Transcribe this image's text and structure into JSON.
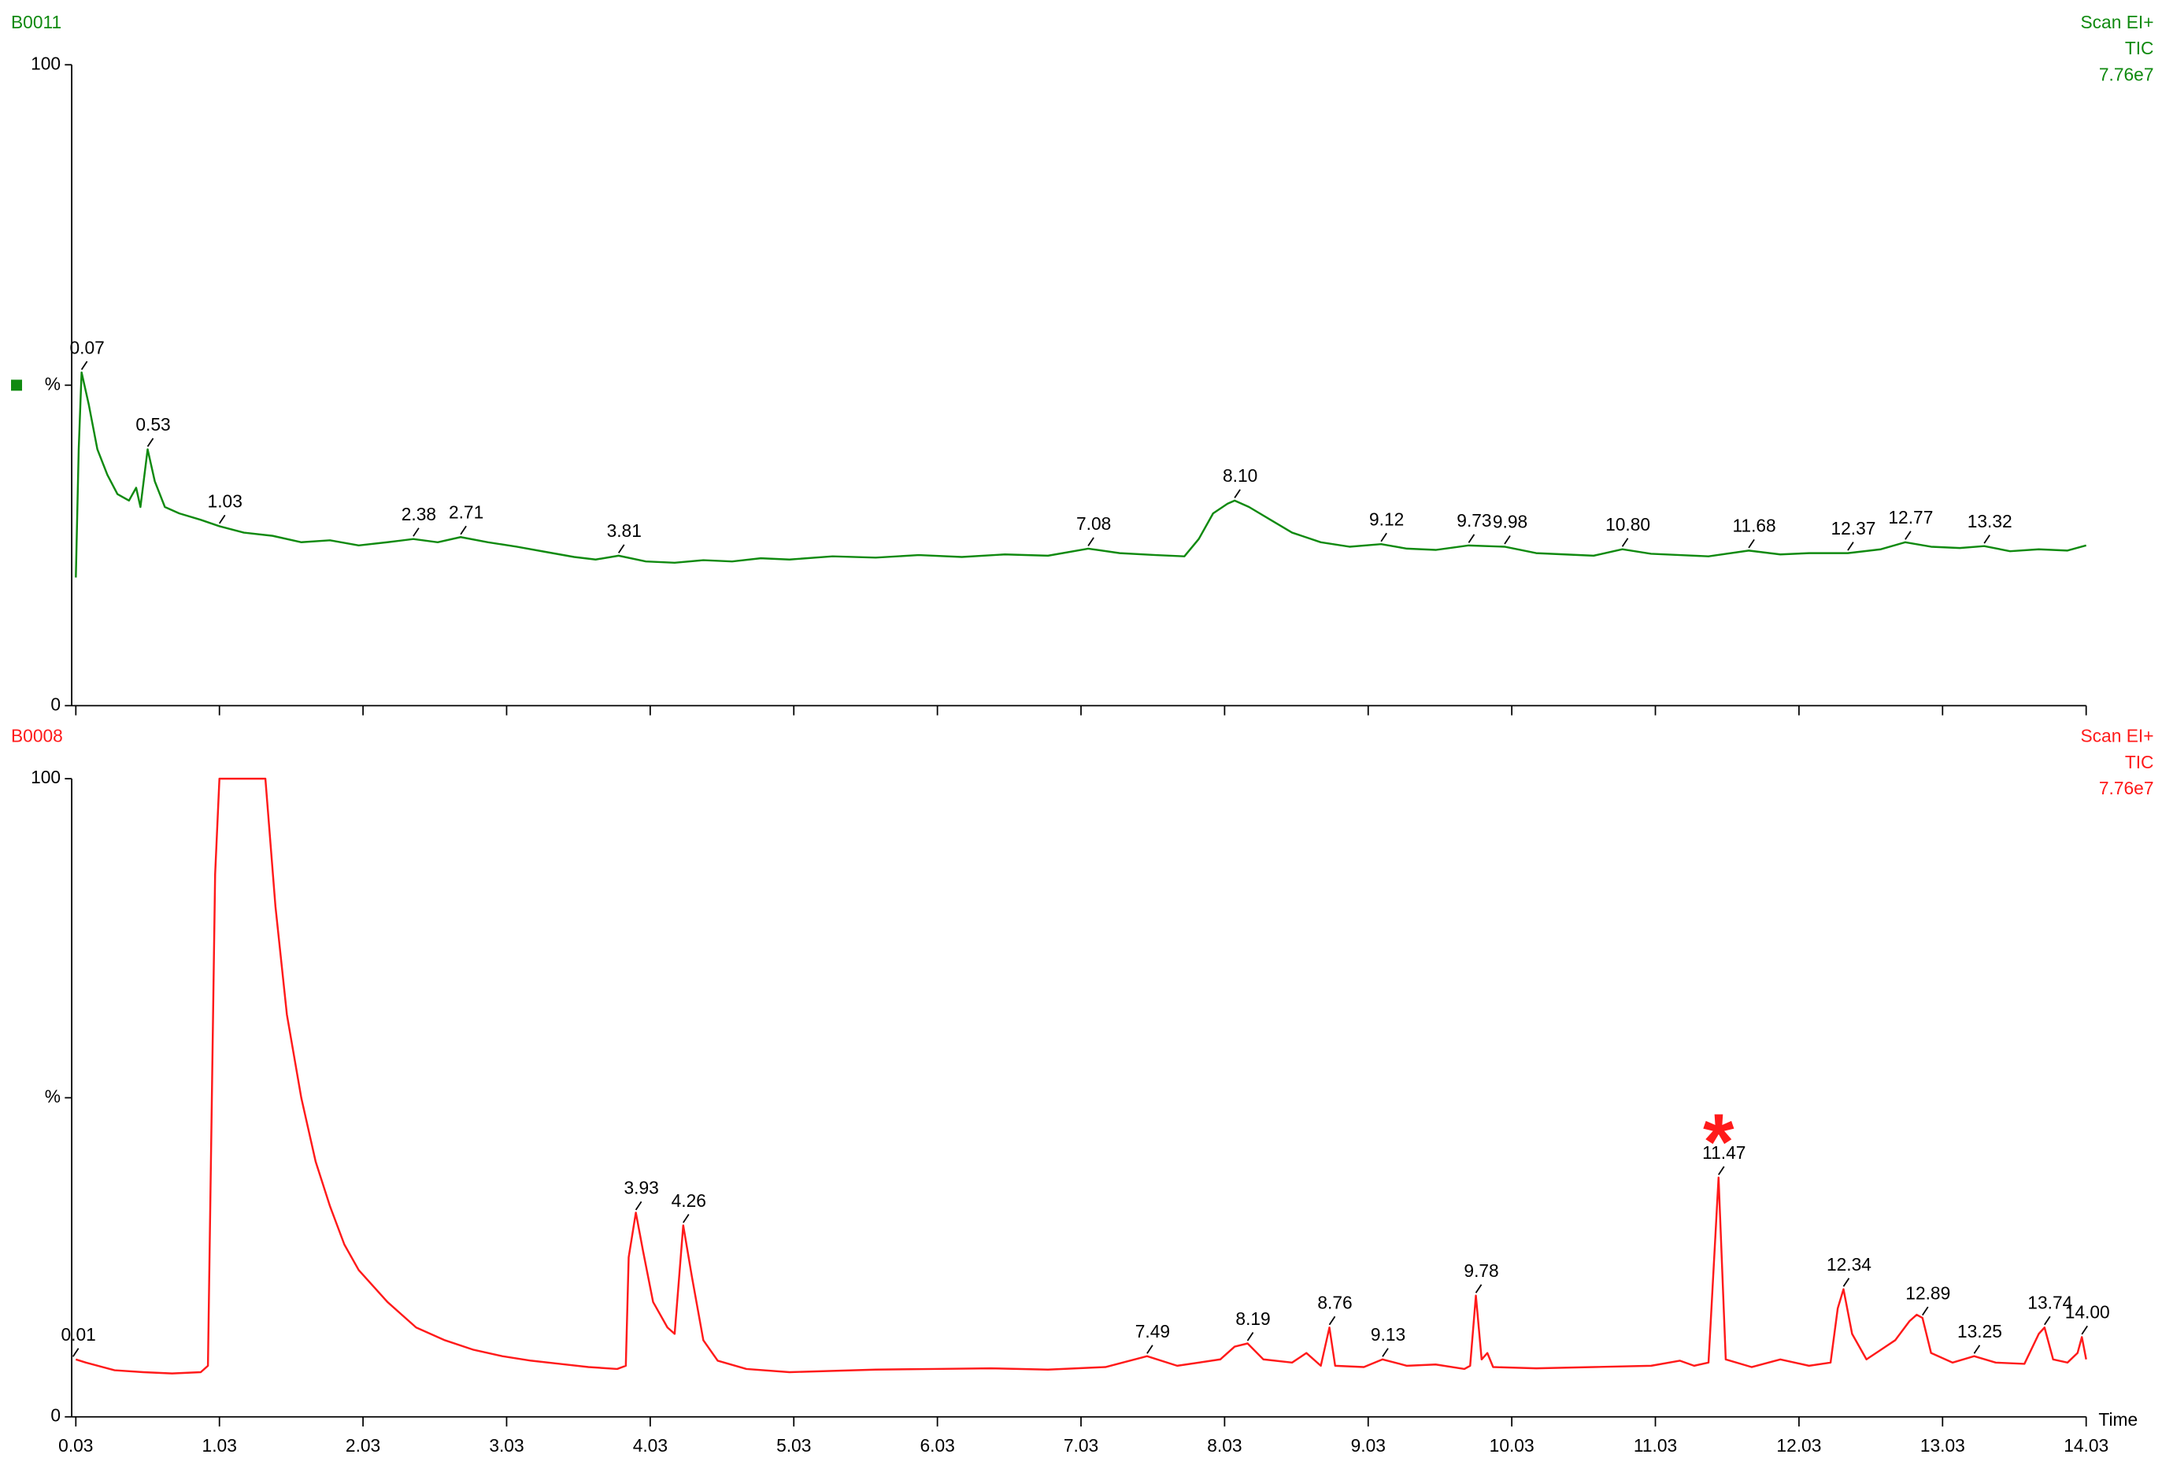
{
  "chart_data": [
    {
      "type": "line",
      "title": "B0011",
      "scan_mode": "Scan EI+",
      "trace": "TIC",
      "intensity": "7.76e7",
      "color": "#108a10",
      "xlim": [
        0.03,
        14.03
      ],
      "xticks": [
        0.03,
        1.03,
        2.03,
        3.03,
        4.03,
        5.03,
        6.03,
        7.03,
        8.03,
        9.03,
        10.03,
        11.03,
        12.03,
        13.03,
        14.03
      ],
      "show_xtick_labels": false,
      "ylim": [
        0,
        100
      ],
      "yticks": [
        0,
        {
          "value": 50,
          "label": "%"
        },
        100
      ],
      "selected_marker": true,
      "x": [
        0.03,
        0.05,
        0.07,
        0.12,
        0.18,
        0.25,
        0.32,
        0.4,
        0.45,
        0.48,
        0.53,
        0.58,
        0.65,
        0.75,
        0.9,
        1.03,
        1.2,
        1.4,
        1.6,
        1.8,
        2.0,
        2.2,
        2.38,
        2.55,
        2.71,
        2.9,
        3.1,
        3.3,
        3.5,
        3.65,
        3.81,
        4.0,
        4.2,
        4.4,
        4.6,
        4.8,
        5.0,
        5.3,
        5.6,
        5.9,
        6.2,
        6.5,
        6.8,
        7.08,
        7.3,
        7.55,
        7.75,
        7.85,
        7.95,
        8.05,
        8.1,
        8.2,
        8.35,
        8.5,
        8.7,
        8.9,
        9.12,
        9.3,
        9.5,
        9.73,
        9.98,
        10.2,
        10.4,
        10.6,
        10.8,
        11.0,
        11.2,
        11.4,
        11.68,
        11.9,
        12.1,
        12.37,
        12.6,
        12.77,
        12.95,
        13.15,
        13.32,
        13.5,
        13.7,
        13.9,
        14.03
      ],
      "values": [
        20,
        40,
        52,
        47,
        40,
        36,
        33,
        32,
        34,
        31,
        40,
        35,
        31,
        30,
        29,
        28,
        27,
        26.5,
        25.5,
        25.8,
        25,
        25.5,
        26,
        25.5,
        26.3,
        25.5,
        24.8,
        24,
        23.2,
        22.8,
        23.4,
        22.5,
        22.3,
        22.7,
        22.5,
        23,
        22.8,
        23.3,
        23.1,
        23.5,
        23.2,
        23.6,
        23.4,
        24.5,
        23.8,
        23.5,
        23.3,
        26,
        30,
        31.5,
        32,
        31,
        29,
        27,
        25.5,
        24.8,
        25.2,
        24.5,
        24.3,
        25,
        24.8,
        23.8,
        23.6,
        23.4,
        24.4,
        23.7,
        23.5,
        23.3,
        24.2,
        23.6,
        23.8,
        23.8,
        24.4,
        25.5,
        24.8,
        24.6,
        24.9,
        24.1,
        24.4,
        24.2,
        25
      ],
      "peaks": [
        {
          "x": 0.07,
          "y": 52,
          "label": "0.07"
        },
        {
          "x": 0.53,
          "y": 40,
          "label": "0.53"
        },
        {
          "x": 1.03,
          "y": 28,
          "label": "1.03"
        },
        {
          "x": 2.38,
          "y": 26,
          "label": "2.38"
        },
        {
          "x": 2.71,
          "y": 26.3,
          "label": "2.71"
        },
        {
          "x": 3.81,
          "y": 23.4,
          "label": "3.81"
        },
        {
          "x": 7.08,
          "y": 24.5,
          "label": "7.08"
        },
        {
          "x": 8.1,
          "y": 32,
          "label": "8.10"
        },
        {
          "x": 9.12,
          "y": 25.2,
          "label": "9.12"
        },
        {
          "x": 9.73,
          "y": 25,
          "label": "9.73"
        },
        {
          "x": 9.98,
          "y": 24.8,
          "label": "9.98"
        },
        {
          "x": 10.8,
          "y": 24.4,
          "label": "10.80"
        },
        {
          "x": 11.68,
          "y": 24.2,
          "label": "11.68"
        },
        {
          "x": 12.37,
          "y": 23.8,
          "label": "12.37"
        },
        {
          "x": 12.77,
          "y": 25.5,
          "label": "12.77"
        },
        {
          "x": 13.32,
          "y": 24.9,
          "label": "13.32"
        }
      ]
    },
    {
      "type": "line",
      "title": "B0008",
      "scan_mode": "Scan EI+",
      "trace": "TIC",
      "intensity": "7.76e7",
      "color": "#ff1a1a",
      "xlabel": "Time",
      "xlim": [
        0.03,
        14.03
      ],
      "xticks": [
        0.03,
        1.03,
        2.03,
        3.03,
        4.03,
        5.03,
        6.03,
        7.03,
        8.03,
        9.03,
        10.03,
        11.03,
        12.03,
        13.03,
        14.03
      ],
      "show_xtick_labels": true,
      "ylim": [
        0,
        100
      ],
      "yticks": [
        0,
        {
          "value": 50,
          "label": "%"
        },
        100
      ],
      "selected_marker": false,
      "x": [
        0.03,
        0.1,
        0.3,
        0.5,
        0.7,
        0.9,
        0.95,
        1.0,
        1.03,
        1.35,
        1.42,
        1.5,
        1.6,
        1.7,
        1.8,
        1.9,
        2.0,
        2.2,
        2.4,
        2.6,
        2.8,
        3.0,
        3.2,
        3.4,
        3.6,
        3.8,
        3.86,
        3.88,
        3.93,
        3.98,
        4.05,
        4.15,
        4.2,
        4.26,
        4.32,
        4.4,
        4.5,
        4.7,
        5.0,
        5.3,
        5.6,
        6.0,
        6.4,
        6.8,
        7.2,
        7.49,
        7.7,
        8.0,
        8.1,
        8.19,
        8.3,
        8.5,
        8.6,
        8.7,
        8.76,
        8.8,
        9.0,
        9.13,
        9.3,
        9.5,
        9.7,
        9.74,
        9.78,
        9.82,
        9.86,
        9.9,
        10.2,
        10.6,
        11.0,
        11.2,
        11.3,
        11.4,
        11.47,
        11.52,
        11.7,
        11.9,
        12.1,
        12.25,
        12.3,
        12.34,
        12.4,
        12.5,
        12.6,
        12.7,
        12.8,
        12.85,
        12.89,
        12.95,
        13.1,
        13.25,
        13.4,
        13.6,
        13.7,
        13.74,
        13.8,
        13.9,
        13.97,
        14.0,
        14.03
      ],
      "values": [
        9,
        8.5,
        7.3,
        7,
        6.8,
        7,
        8,
        85,
        100,
        100,
        80,
        63,
        50,
        40,
        33,
        27,
        23,
        18,
        14,
        12,
        10.5,
        9.5,
        8.8,
        8.3,
        7.8,
        7.5,
        8,
        25,
        32,
        26,
        18,
        14,
        13,
        30,
        22,
        12,
        8.8,
        7.5,
        7,
        7.2,
        7.4,
        7.5,
        7.6,
        7.4,
        7.8,
        9.5,
        8,
        9,
        11,
        11.5,
        9,
        8.5,
        10,
        8,
        14,
        8,
        7.8,
        9,
        8,
        8.2,
        7.5,
        8,
        19,
        9,
        10,
        7.8,
        7.6,
        7.8,
        8,
        8.8,
        8,
        8.5,
        37.5,
        9,
        7.8,
        9,
        8,
        8.5,
        17,
        20,
        13,
        9,
        10.5,
        12,
        15,
        16,
        15.5,
        10,
        8.5,
        9.5,
        8.5,
        8.3,
        13,
        14,
        9,
        8.5,
        10,
        12.5,
        9
      ],
      "peaks": [
        {
          "x": 0.01,
          "y": 9,
          "label": "0.01"
        },
        {
          "x": 3.93,
          "y": 32,
          "label": "3.93"
        },
        {
          "x": 4.26,
          "y": 30,
          "label": "4.26"
        },
        {
          "x": 7.49,
          "y": 9.5,
          "label": "7.49"
        },
        {
          "x": 8.19,
          "y": 11.5,
          "label": "8.19"
        },
        {
          "x": 8.76,
          "y": 14,
          "label": "8.76"
        },
        {
          "x": 9.13,
          "y": 9,
          "label": "9.13"
        },
        {
          "x": 9.78,
          "y": 19,
          "label": "9.78"
        },
        {
          "x": 11.47,
          "y": 37.5,
          "label": "11.47"
        },
        {
          "x": 12.34,
          "y": 20,
          "label": "12.34"
        },
        {
          "x": 12.89,
          "y": 15.5,
          "label": "12.89"
        },
        {
          "x": 13.25,
          "y": 9.5,
          "label": "13.25"
        },
        {
          "x": 13.74,
          "y": 14,
          "label": "13.74"
        },
        {
          "x": 14.0,
          "y": 12.5,
          "label": "14.00"
        }
      ],
      "annotations": [
        {
          "text": "*",
          "x": 11.47
        }
      ]
    }
  ]
}
